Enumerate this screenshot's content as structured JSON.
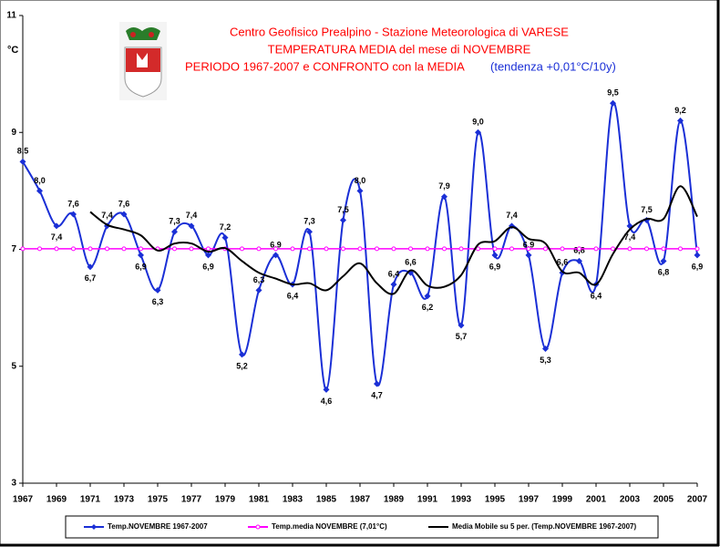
{
  "chart_data": {
    "type": "line",
    "title": [
      "Centro Geofisico Prealpino - Stazione Meteorologica di VARESE",
      "TEMPERATURA MEDIA del mese di NOVEMBRE",
      "PERIODO 1967-2007 e CONFRONTO con la MEDIA"
    ],
    "annotation": "(tendenza +0,01°C/10y)",
    "y_label": "°C",
    "x": [
      1967,
      1968,
      1969,
      1970,
      1971,
      1972,
      1973,
      1974,
      1975,
      1976,
      1977,
      1978,
      1979,
      1980,
      1981,
      1982,
      1983,
      1984,
      1985,
      1986,
      1987,
      1988,
      1989,
      1990,
      1991,
      1992,
      1993,
      1994,
      1995,
      1996,
      1997,
      1998,
      1999,
      2000,
      2001,
      2002,
      2003,
      2004,
      2005,
      2006,
      2007
    ],
    "xlim": [
      1967,
      2007
    ],
    "xticks": [
      1967,
      1969,
      1971,
      1973,
      1975,
      1977,
      1979,
      1981,
      1983,
      1985,
      1987,
      1989,
      1991,
      1993,
      1995,
      1997,
      1999,
      2001,
      2003,
      2005,
      2007
    ],
    "ylim": [
      3,
      11
    ],
    "yticks": [
      3,
      5,
      7,
      9,
      11
    ],
    "series": [
      {
        "name": "Temp.NOVEMBRE 1967-2007",
        "color": "#1a2fd6",
        "values": [
          8.5,
          8.0,
          7.4,
          7.6,
          6.7,
          7.4,
          7.6,
          6.9,
          6.3,
          7.3,
          7.4,
          6.9,
          7.2,
          5.2,
          6.3,
          6.9,
          6.4,
          7.3,
          4.6,
          7.5,
          8.0,
          4.7,
          6.4,
          6.6,
          6.2,
          7.9,
          5.7,
          9.0,
          6.9,
          7.4,
          6.9,
          5.3,
          6.6,
          6.8,
          6.4,
          9.5,
          7.4,
          7.5,
          6.8,
          9.2,
          6.9
        ],
        "value_labels": [
          "8,5",
          "8,0",
          "7,4",
          "7,6",
          "6,7",
          "7,4",
          "7,6",
          "6,9",
          "6,3",
          "7,3",
          "7,4",
          "6,9",
          "7,2",
          "5,2",
          "6,3",
          "6,9",
          "6,4",
          "7,3",
          "4,6",
          "7,5",
          "8,0",
          "4,7",
          "6,4",
          "6,6",
          "6,2",
          "7,9",
          "5,7",
          "9,0",
          "6,9",
          "7,4",
          "6,9",
          "5,3",
          "6,6",
          "6,8",
          "6,4",
          "9,5",
          "7,4",
          "7,5",
          "6,8",
          "9,2",
          "6,9"
        ]
      },
      {
        "name": "Temp.media NOVEMBRE (7,01°C)",
        "color": "#ff00ff",
        "values": [
          7.01,
          7.01,
          7.01,
          7.01,
          7.01,
          7.01,
          7.01,
          7.01,
          7.01,
          7.01,
          7.01,
          7.01,
          7.01,
          7.01,
          7.01,
          7.01,
          7.01,
          7.01,
          7.01,
          7.01,
          7.01,
          7.01,
          7.01,
          7.01,
          7.01,
          7.01,
          7.01,
          7.01,
          7.01,
          7.01,
          7.01,
          7.01,
          7.01,
          7.01,
          7.01,
          7.01,
          7.01,
          7.01,
          7.01,
          7.01,
          7.01
        ]
      },
      {
        "name": "Media Mobile su 5 per. (Temp.NOVEMBRE 1967-2007)",
        "color": "#000000",
        "values": [
          null,
          null,
          null,
          null,
          7.64,
          7.42,
          7.34,
          7.24,
          6.98,
          7.1,
          7.1,
          6.96,
          7.02,
          6.8,
          6.6,
          6.5,
          6.4,
          6.42,
          6.3,
          6.54,
          6.76,
          6.42,
          6.24,
          6.64,
          6.38,
          6.36,
          6.56,
          7.08,
          7.14,
          7.38,
          7.18,
          7.1,
          6.62,
          6.6,
          6.4,
          6.92,
          7.34,
          7.52,
          7.52,
          8.08,
          7.56
        ]
      }
    ]
  }
}
